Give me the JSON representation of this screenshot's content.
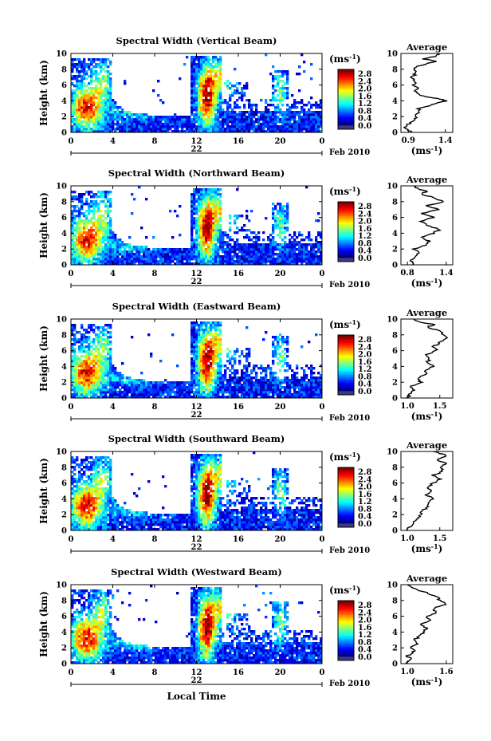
{
  "chart_data": [
    {
      "type": "heatmap",
      "title": "Spectral Width (Vertical Beam)",
      "ylabel": "Height (km)",
      "ylim": [
        0,
        10
      ],
      "yticks": [
        "0",
        "2",
        "4",
        "6",
        "8",
        "10"
      ],
      "xlim": [
        0,
        24
      ],
      "xticks": [
        "0",
        "4",
        "8",
        "12",
        "16",
        "20",
        "0"
      ],
      "date_marker": "22",
      "date_label": "Feb 2010",
      "colorbar": {
        "unit": "(ms",
        "unit_exp": "-1",
        "unit_close": ")",
        "ticks": [
          "0.0",
          "0.4",
          "0.8",
          "1.2",
          "1.6",
          "2.0",
          "2.4",
          "2.8"
        ]
      },
      "average": {
        "title": "Average",
        "xunit": "(ms",
        "xunit_exp": "-1",
        "xunit_close": ")",
        "xticks": [
          "0.9",
          "1.4"
        ],
        "xlim": [
          0.8,
          1.5
        ],
        "profile": [
          [
            0.0,
            0.95
          ],
          [
            0.5,
            0.85
          ],
          [
            1.0,
            0.9
          ],
          [
            1.5,
            0.95
          ],
          [
            2.0,
            1.0
          ],
          [
            2.5,
            1.02
          ],
          [
            3.0,
            1.05
          ],
          [
            3.5,
            1.2
          ],
          [
            4.0,
            1.4
          ],
          [
            4.3,
            1.3
          ],
          [
            4.6,
            1.1
          ],
          [
            5.0,
            1.0
          ],
          [
            5.5,
            1.02
          ],
          [
            6.0,
            0.98
          ],
          [
            6.5,
            1.0
          ],
          [
            7.0,
            0.95
          ],
          [
            7.5,
            1.0
          ],
          [
            8.0,
            0.98
          ],
          [
            8.5,
            1.05
          ],
          [
            9.0,
            1.3
          ],
          [
            9.3,
            1.1
          ],
          [
            9.6,
            1.25
          ],
          [
            10.0,
            1.3
          ]
        ]
      }
    },
    {
      "type": "heatmap",
      "title": "Spectral Width (Northward Beam)",
      "ylabel": "Height (km)",
      "ylim": [
        0,
        10
      ],
      "yticks": [
        "0",
        "2",
        "4",
        "6",
        "8",
        "10"
      ],
      "xlim": [
        0,
        24
      ],
      "xticks": [
        "0",
        "4",
        "8",
        "12",
        "16",
        "20",
        "0"
      ],
      "date_marker": "22",
      "date_label": "Feb 2010",
      "colorbar": {
        "unit": "(ms",
        "unit_exp": "-1",
        "unit_close": ")",
        "ticks": [
          "0.0",
          "0.4",
          "0.8",
          "1.2",
          "1.6",
          "2.0",
          "2.4",
          "2.8"
        ]
      },
      "average": {
        "title": "Average",
        "xunit": "(ms",
        "xunit_exp": "-1",
        "xunit_close": ")",
        "xticks": [
          "0.8",
          "1.4"
        ],
        "xlim": [
          0.7,
          1.5
        ],
        "profile": [
          [
            0.0,
            0.9
          ],
          [
            0.5,
            0.85
          ],
          [
            1.0,
            0.9
          ],
          [
            1.5,
            1.0
          ],
          [
            2.0,
            0.9
          ],
          [
            2.5,
            1.1
          ],
          [
            3.0,
            1.15
          ],
          [
            3.5,
            1.0
          ],
          [
            4.0,
            1.2
          ],
          [
            4.5,
            1.3
          ],
          [
            5.0,
            1.1
          ],
          [
            5.5,
            1.0
          ],
          [
            6.0,
            1.2
          ],
          [
            6.5,
            1.0
          ],
          [
            7.0,
            1.3
          ],
          [
            7.5,
            1.1
          ],
          [
            8.0,
            1.35
          ],
          [
            8.5,
            1.2
          ],
          [
            9.0,
            1.0
          ],
          [
            9.3,
            1.1
          ],
          [
            9.6,
            0.95
          ],
          [
            10.0,
            0.9
          ]
        ]
      }
    },
    {
      "type": "heatmap",
      "title": "Spectral Width (Eastward Beam)",
      "ylabel": "Height (km)",
      "ylim": [
        0,
        10
      ],
      "yticks": [
        "0",
        "2",
        "4",
        "6",
        "8",
        "10"
      ],
      "xlim": [
        0,
        24
      ],
      "xticks": [
        "0",
        "4",
        "8",
        "12",
        "16",
        "20",
        "0"
      ],
      "date_marker": "22",
      "date_label": "Feb 2010",
      "colorbar": {
        "unit": "(ms",
        "unit_exp": "-1",
        "unit_close": ")",
        "ticks": [
          "0.0",
          "0.4",
          "0.8",
          "1.2",
          "1.6",
          "2.0",
          "2.4",
          "2.8"
        ]
      },
      "average": {
        "title": "Average",
        "xunit": "(ms",
        "xunit_exp": "-1",
        "xunit_close": ")",
        "xticks": [
          "1.0",
          "1.5"
        ],
        "xlim": [
          0.9,
          1.7
        ],
        "profile": [
          [
            0.0,
            1.0
          ],
          [
            0.5,
            1.05
          ],
          [
            1.0,
            1.1
          ],
          [
            1.5,
            1.05
          ],
          [
            2.0,
            1.2
          ],
          [
            2.5,
            1.15
          ],
          [
            3.0,
            1.3
          ],
          [
            3.5,
            1.25
          ],
          [
            4.0,
            1.4
          ],
          [
            4.5,
            1.3
          ],
          [
            5.0,
            1.35
          ],
          [
            5.5,
            1.3
          ],
          [
            6.0,
            1.45
          ],
          [
            6.5,
            1.4
          ],
          [
            7.0,
            1.5
          ],
          [
            7.5,
            1.6
          ],
          [
            8.0,
            1.55
          ],
          [
            8.5,
            1.5
          ],
          [
            9.0,
            1.3
          ],
          [
            9.3,
            1.45
          ],
          [
            9.6,
            1.2
          ],
          [
            10.0,
            1.1
          ]
        ]
      }
    },
    {
      "type": "heatmap",
      "title": "Spectral Width (Southward Beam)",
      "ylabel": "Height (km)",
      "ylim": [
        0,
        10
      ],
      "yticks": [
        "0",
        "2",
        "4",
        "6",
        "8",
        "10"
      ],
      "xlim": [
        0,
        24
      ],
      "xticks": [
        "0",
        "4",
        "8",
        "12",
        "16",
        "20",
        "0"
      ],
      "date_marker": "22",
      "date_label": "Feb 2010",
      "colorbar": {
        "unit": "(ms",
        "unit_exp": "-1",
        "unit_close": ")",
        "ticks": [
          "0.0",
          "0.4",
          "0.8",
          "1.2",
          "1.6",
          "2.0",
          "2.4",
          "2.8"
        ]
      },
      "average": {
        "title": "Average",
        "xunit": "(ms",
        "xunit_exp": "-1",
        "xunit_close": ")",
        "xticks": [
          "1.0",
          "1.5"
        ],
        "xlim": [
          0.9,
          1.7
        ],
        "profile": [
          [
            0.0,
            1.0
          ],
          [
            0.5,
            1.05
          ],
          [
            1.0,
            1.1
          ],
          [
            1.5,
            1.15
          ],
          [
            2.0,
            1.2
          ],
          [
            2.5,
            1.25
          ],
          [
            3.0,
            1.3
          ],
          [
            3.5,
            1.35
          ],
          [
            4.0,
            1.4
          ],
          [
            4.5,
            1.3
          ],
          [
            5.0,
            1.35
          ],
          [
            5.5,
            1.3
          ],
          [
            6.0,
            1.4
          ],
          [
            6.5,
            1.5
          ],
          [
            7.0,
            1.4
          ],
          [
            7.5,
            1.55
          ],
          [
            8.0,
            1.5
          ],
          [
            8.5,
            1.6
          ],
          [
            9.0,
            1.45
          ],
          [
            9.5,
            1.6
          ],
          [
            10.0,
            1.4
          ]
        ]
      }
    },
    {
      "type": "heatmap",
      "title": "Spectral Width (Westward Beam)",
      "ylabel": "Height (km)",
      "ylim": [
        0,
        10
      ],
      "yticks": [
        "0",
        "2",
        "4",
        "6",
        "8",
        "10"
      ],
      "xlim": [
        0,
        24
      ],
      "xticks": [
        "0",
        "4",
        "8",
        "12",
        "16",
        "20",
        "0"
      ],
      "date_marker": "22",
      "date_label": "Feb 2010",
      "xlabel": "Local Time",
      "colorbar": {
        "unit": "(ms",
        "unit_exp": "-1",
        "unit_close": ")",
        "ticks": [
          "0.0",
          "0.4",
          "0.8",
          "1.2",
          "1.6",
          "2.0",
          "2.4",
          "2.8"
        ]
      },
      "average": {
        "title": "Average",
        "xunit": "(ms",
        "xunit_exp": "-1",
        "xunit_close": ")",
        "xticks": [
          "1.0",
          "1.6"
        ],
        "xlim": [
          0.9,
          1.7
        ],
        "profile": [
          [
            0.0,
            1.0
          ],
          [
            0.5,
            1.05
          ],
          [
            1.0,
            1.0
          ],
          [
            1.5,
            1.1
          ],
          [
            2.0,
            1.05
          ],
          [
            2.5,
            1.15
          ],
          [
            3.0,
            1.1
          ],
          [
            3.5,
            1.2
          ],
          [
            4.0,
            1.25
          ],
          [
            4.5,
            1.3
          ],
          [
            5.0,
            1.2
          ],
          [
            5.5,
            1.35
          ],
          [
            6.0,
            1.3
          ],
          [
            6.5,
            1.45
          ],
          [
            7.0,
            1.4
          ],
          [
            7.5,
            1.6
          ],
          [
            8.0,
            1.5
          ],
          [
            8.5,
            1.45
          ],
          [
            9.0,
            1.3
          ],
          [
            9.5,
            1.1
          ],
          [
            10.0,
            1.0
          ]
        ]
      }
    }
  ]
}
